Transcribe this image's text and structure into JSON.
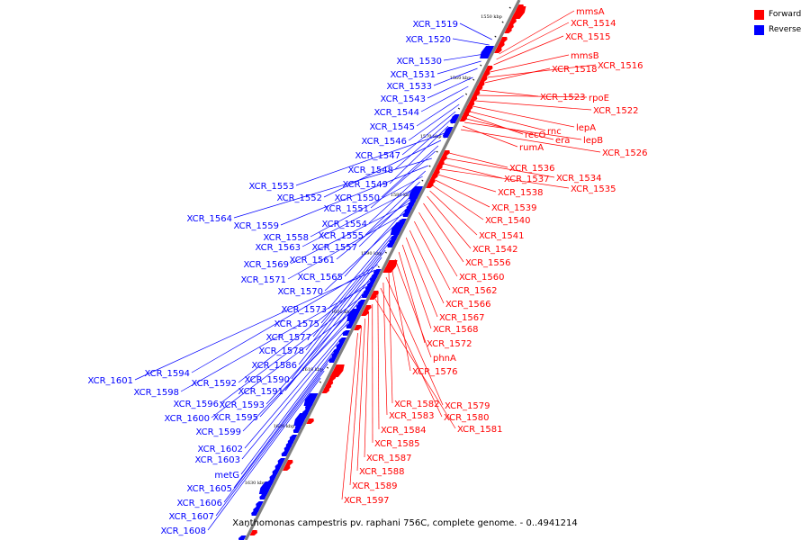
{
  "legend": {
    "forward_label": "Forward",
    "reverse_label": "Reverse",
    "forward_color": "#ff0000",
    "reverse_color": "#0000ff"
  },
  "caption": "Xanthomonas campestris pv. raphani 756C, complete genome. - 0..4941214",
  "colors": {
    "backbone": "#808080",
    "tick": "#000000"
  },
  "ticks": [
    "1550 kbp",
    "1560 kbp",
    "1570 kbp",
    "1580 kbp",
    "1590 kbp",
    "1600 kbp",
    "1610 kbp",
    "1620 kbp",
    "1630 kbp"
  ],
  "reverse_labels": [
    "XCR_1519",
    "XCR_1520",
    "XCR_1530",
    "XCR_1531",
    "XCR_1533",
    "XCR_1543",
    "XCR_1544",
    "XCR_1545",
    "XCR_1546",
    "XCR_1547",
    "XCR_1548",
    "XCR_1549",
    "XCR_1553",
    "XCR_1552",
    "XCR_1550",
    "XCR_1551",
    "XCR_1564",
    "XCR_1559",
    "XCR_1554",
    "XCR_1558",
    "XCR_1555",
    "XCR_1563",
    "XCR_1557",
    "XCR_1561",
    "XCR_1569",
    "XCR_1565",
    "XCR_1571",
    "XCR_1570",
    "XCR_1573",
    "XCR_1575",
    "XCR_1577",
    "XCR_1578",
    "XCR_1586",
    "XCR_1594",
    "XCR_1601",
    "XCR_1590",
    "XCR_1592",
    "XCR_1598",
    "XCR_1591",
    "XCR_1596",
    "XCR_1593",
    "XCR_1600",
    "XCR_1595",
    "XCR_1599",
    "XCR_1602",
    "XCR_1603",
    "metG",
    "XCR_1605",
    "XCR_1606",
    "XCR_1607",
    "XCR_1608"
  ],
  "forward_labels": [
    "mmsA",
    "XCR_1514",
    "XCR_1515",
    "mmsB",
    "XCR_1516",
    "XCR_1518",
    "XCR_1523",
    "rpoE",
    "XCR_1522",
    "lepA",
    "rnc",
    "recO",
    "era",
    "lepB",
    "rumA",
    "XCR_1526",
    "XCR_1536",
    "XCR_1534",
    "XCR_1537",
    "XCR_1535",
    "XCR_1538",
    "XCR_1539",
    "XCR_1540",
    "XCR_1541",
    "XCR_1542",
    "XCR_1556",
    "XCR_1560",
    "XCR_1562",
    "XCR_1566",
    "XCR_1567",
    "XCR_1568",
    "XCR_1572",
    "phnA",
    "XCR_1576",
    "XCR_1582",
    "XCR_1579",
    "XCR_1583",
    "XCR_1580",
    "XCR_1584",
    "XCR_1581",
    "XCR_1585",
    "XCR_1587",
    "XCR_1588",
    "XCR_1589",
    "XCR_1597"
  ]
}
